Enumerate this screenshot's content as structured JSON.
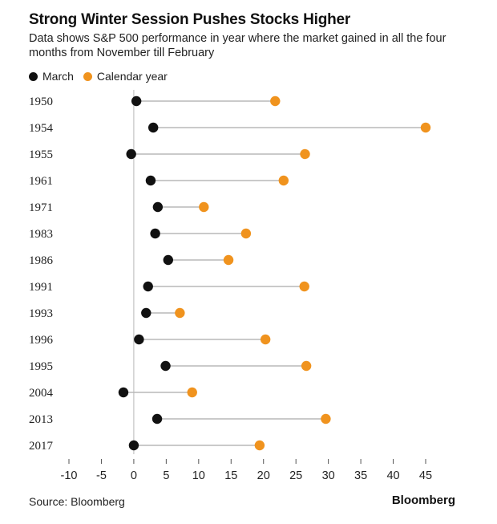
{
  "header": {
    "title": "Strong Winter Session Pushes Stocks Higher",
    "subtitle": "Data shows S&P 500 performance in year where the market gained in all the four months from November till February"
  },
  "footer": {
    "source": "Source: Bloomberg",
    "brand": "Bloomberg"
  },
  "colors": {
    "march": "#111111",
    "calendar_year": "#f0931e",
    "connector": "#b8b8b8",
    "axis": "#b8b8b8"
  },
  "chart_data": {
    "type": "dumbbell",
    "title": "Strong Winter Session Pushes Stocks Higher",
    "subtitle": "Data shows S&P 500 performance in year where the market gained in all the four months from November till February",
    "xlabel": "",
    "ylabel": "",
    "xlim": [
      -10,
      45
    ],
    "xticks": [
      "-10",
      "-5",
      "0",
      "5",
      "10",
      "15",
      "20",
      "25",
      "30",
      "35",
      "40",
      "45"
    ],
    "grid": false,
    "legend_position": "top-left",
    "categories": [
      "1950",
      "1954",
      "1955",
      "1961",
      "1971",
      "1983",
      "1986",
      "1991",
      "1993",
      "1996",
      "1995",
      "2004",
      "2013",
      "2017"
    ],
    "series": [
      {
        "name": "March",
        "values": [
          0.4,
          3.0,
          -0.4,
          2.6,
          3.7,
          3.3,
          5.3,
          2.2,
          1.9,
          0.8,
          4.9,
          -1.6,
          3.6,
          0.0
        ]
      },
      {
        "name": "Calendar year",
        "values": [
          21.8,
          45.0,
          26.4,
          23.1,
          10.8,
          17.3,
          14.6,
          26.3,
          7.1,
          20.3,
          26.6,
          9.0,
          29.6,
          19.4
        ]
      }
    ]
  }
}
